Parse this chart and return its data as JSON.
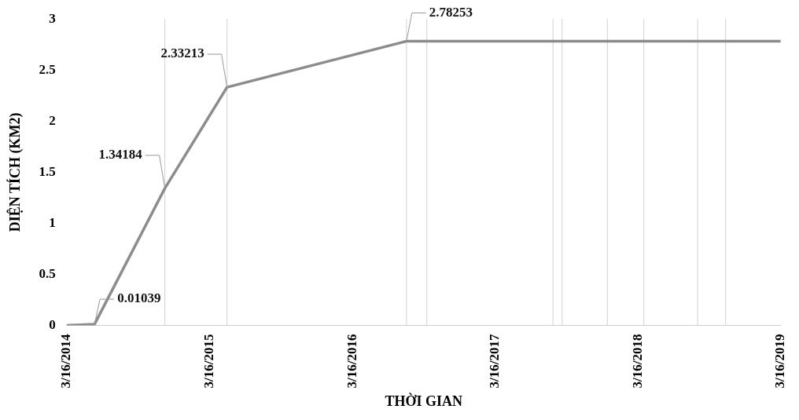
{
  "chart_data": {
    "type": "line",
    "xlabel": "THỜI GIAN",
    "ylabel": "DIỆN TÍCH (KM2)",
    "x": [
      "2014-03-16",
      "2014-05-26",
      "2014-11-22",
      "2015-04-30",
      "2016-08-01",
      "2016-09-22",
      "2017-08-11",
      "2017-09-03",
      "2017-12-28",
      "2018-03-31",
      "2018-08-16",
      "2018-10-26",
      "2019-03-16"
    ],
    "series": [
      {
        "color": "#8c8c8c",
        "values": [
          0,
          0.01039,
          1.34184,
          2.33213,
          2.78253,
          2.78253,
          2.78253,
          2.78253,
          2.78253,
          2.78253,
          2.78253,
          2.78253,
          2.78253
        ],
        "value_labels": [
          null,
          "0.01039",
          "1.34184",
          "2.33213",
          "2.78253",
          null,
          null,
          null,
          null,
          null,
          null,
          null,
          null
        ]
      }
    ],
    "xlim": [
      "2014-03-16",
      "2019-03-16"
    ],
    "xticks": [
      {
        "value": "2014-03-16",
        "label": "3/16/2014"
      },
      {
        "value": "2015-03-16",
        "label": "3/16/2015"
      },
      {
        "value": "2016-03-16",
        "label": "3/16/2016"
      },
      {
        "value": "2017-03-16",
        "label": "3/16/2017"
      },
      {
        "value": "2018-03-16",
        "label": "3/16/2018"
      },
      {
        "value": "2019-03-16",
        "label": "3/16/2019"
      }
    ],
    "ylim": [
      0,
      3
    ],
    "yticks": [
      0,
      0.5,
      1,
      1.5,
      2,
      2.5,
      3
    ],
    "ref_lines": [
      {
        "axis": "x",
        "value": "2014-11-22",
        "color": "#d9d9d9"
      },
      {
        "axis": "x",
        "value": "2015-04-30",
        "color": "#d9d9d9"
      },
      {
        "axis": "x",
        "value": "2016-08-01",
        "color": "#d9d9d9"
      },
      {
        "axis": "x",
        "value": "2016-09-22",
        "color": "#d9d9d9"
      },
      {
        "axis": "x",
        "value": "2017-08-11",
        "color": "#d9d9d9"
      },
      {
        "axis": "x",
        "value": "2017-09-03",
        "color": "#d9d9d9"
      },
      {
        "axis": "x",
        "value": "2017-12-28",
        "color": "#d9d9d9"
      },
      {
        "axis": "x",
        "value": "2018-03-31",
        "color": "#d9d9d9"
      },
      {
        "axis": "x",
        "value": "2018-08-16",
        "color": "#d9d9d9"
      },
      {
        "axis": "x",
        "value": "2018-10-26",
        "color": "#d9d9d9"
      }
    ],
    "grid": false,
    "legend": false,
    "marker": "none",
    "line_style": "solid"
  }
}
